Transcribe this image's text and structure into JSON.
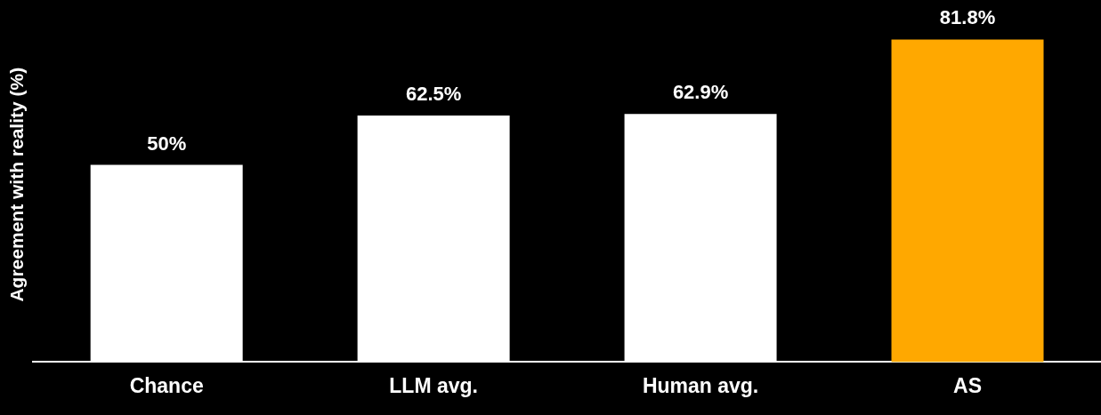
{
  "chart_data": {
    "type": "bar",
    "ylabel": "Agreement with reality (%)",
    "categories": [
      "Chance",
      "LLM avg.",
      "Human avg.",
      "AS"
    ],
    "values": [
      50,
      62.5,
      62.9,
      81.8
    ],
    "colors": [
      "#ffffff",
      "#ffffff",
      "#ffffff",
      "#ffa800"
    ],
    "value_labels": [
      "50%",
      "62.5%",
      "62.9%",
      "81.8%"
    ],
    "tick_labels": "x",
    "legend": false
  }
}
